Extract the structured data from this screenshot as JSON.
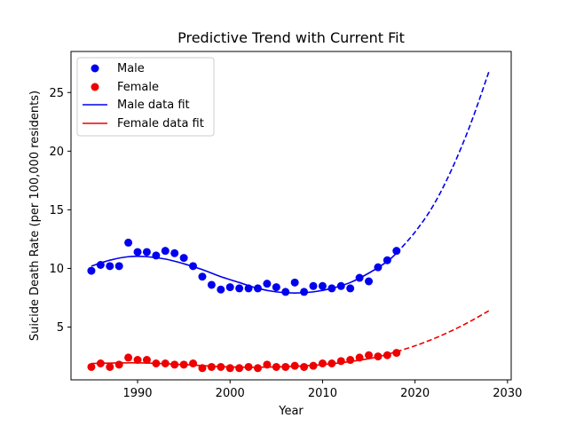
{
  "chart_data": {
    "type": "scatter",
    "title": "Predictive Trend with Current Fit",
    "xlabel": "Year",
    "ylabel": "Suicide Death Rate (per 100,000 residents)",
    "xlim": [
      1982.8,
      2030.4
    ],
    "ylim": [
      0.5,
      28.5
    ],
    "xticks": [
      1990,
      2000,
      2010,
      2020,
      2030
    ],
    "yticks": [
      5,
      10,
      15,
      20,
      25
    ],
    "grid": false,
    "legend_position": "top-left",
    "colors": {
      "male": "#0000ee",
      "female": "#ee0000"
    },
    "x": [
      1985,
      1986,
      1987,
      1988,
      1989,
      1990,
      1991,
      1992,
      1993,
      1994,
      1995,
      1996,
      1997,
      1998,
      1999,
      2000,
      2001,
      2002,
      2003,
      2004,
      2005,
      2006,
      2007,
      2008,
      2009,
      2010,
      2011,
      2012,
      2013,
      2014,
      2015,
      2016,
      2017,
      2018
    ],
    "series": [
      {
        "name": "Male",
        "kind": "points",
        "values": [
          9.8,
          10.3,
          10.2,
          10.2,
          12.2,
          11.4,
          11.4,
          11.1,
          11.5,
          11.3,
          10.9,
          10.2,
          9.3,
          8.6,
          8.2,
          8.4,
          8.3,
          8.3,
          8.3,
          8.7,
          8.4,
          8.0,
          8.8,
          8.0,
          8.5,
          8.5,
          8.3,
          8.5,
          8.3,
          9.2,
          8.9,
          10.1,
          10.7,
          11.5
        ]
      },
      {
        "name": "Female",
        "kind": "points",
        "values": [
          1.6,
          1.9,
          1.6,
          1.8,
          2.4,
          2.2,
          2.2,
          1.9,
          1.9,
          1.8,
          1.8,
          1.9,
          1.5,
          1.6,
          1.6,
          1.5,
          1.5,
          1.6,
          1.5,
          1.8,
          1.6,
          1.6,
          1.7,
          1.6,
          1.7,
          1.9,
          1.9,
          2.1,
          2.2,
          2.4,
          2.6,
          2.5,
          2.6,
          2.8
        ]
      },
      {
        "name": "Male data fit",
        "kind": "fit",
        "fit_x": [
          1985,
          1987,
          1989,
          1991,
          1993,
          1995,
          1997,
          1999,
          2001,
          2003,
          2005,
          2007,
          2009,
          2011,
          2013,
          2015,
          2017,
          2018
        ],
        "fit_y": [
          10.2,
          10.7,
          11.0,
          11.0,
          10.8,
          10.4,
          9.9,
          9.3,
          8.8,
          8.3,
          8.0,
          7.9,
          8.0,
          8.3,
          8.8,
          9.6,
          10.6,
          11.3
        ],
        "projection_x": [
          2018,
          2020,
          2022,
          2024,
          2026,
          2028
        ],
        "projection_y": [
          11.3,
          13.1,
          15.4,
          18.5,
          22.3,
          26.8
        ]
      },
      {
        "name": "Female data fit",
        "kind": "fit",
        "fit_x": [
          1985,
          1990,
          1995,
          2000,
          2005,
          2010,
          2015,
          2018
        ],
        "fit_y": [
          1.9,
          1.95,
          1.8,
          1.6,
          1.6,
          1.8,
          2.3,
          2.9
        ],
        "projection_x": [
          2018,
          2020,
          2022,
          2024,
          2026,
          2028
        ],
        "projection_y": [
          2.9,
          3.4,
          4.0,
          4.7,
          5.5,
          6.4
        ]
      }
    ]
  }
}
